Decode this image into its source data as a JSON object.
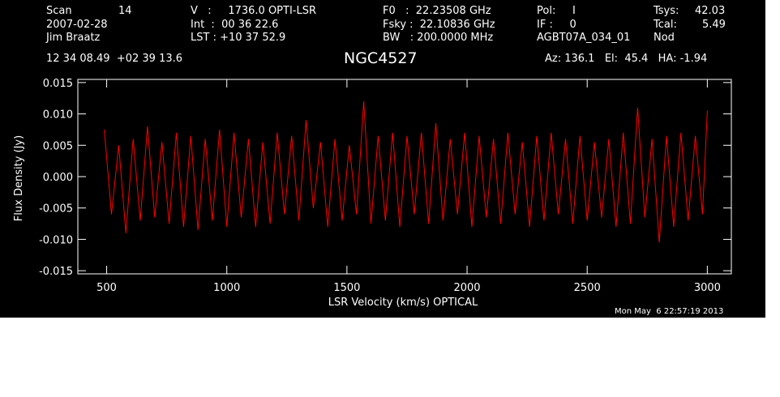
{
  "header": {
    "scan_label": "Scan",
    "scan_value": "14",
    "date": "2007-02-28",
    "observer": "Jim Braatz",
    "v_line": "V   :     1736.0 OPTI-LSR",
    "int_line": "Int  :  00 36 22.6",
    "lst_line": "LST : +10 37 52.9",
    "f0_line": "F0   :  22.23508 GHz",
    "fsky_line": "Fsky :  22.10836 GHz",
    "bw_line": "BW   : 200.0000 MHz",
    "pol_line": "Pol:     I",
    "if_line": "IF :     0",
    "project": "AGBT07A_034_01",
    "tsys_label": "Tsys:",
    "tsys_value": "42.03",
    "tcal_label": "Tcal:",
    "tcal_value": "5.49",
    "nod": "Nod",
    "coords": "12 34 08.49  +02 39 13.6",
    "source": "NGC4527",
    "az_el_ha": "Az: 136.1   El:  45.4   HA: -1.94",
    "timestamp": "Mon May  6 22:57:19 2013"
  },
  "chart_data": {
    "type": "line",
    "title": "NGC4527",
    "xlabel": "LSR Velocity (km/s) OPTICAL",
    "ylabel": "Flux Density (Jy)",
    "xlim": [
      380,
      3100
    ],
    "ylim": [
      -0.0155,
      0.0155
    ],
    "xticks": [
      500,
      1000,
      1500,
      2000,
      2500,
      3000
    ],
    "xtick_labels": [
      "500",
      "1000",
      "1500",
      "2000",
      "2500",
      "3000"
    ],
    "yticks": [
      -0.015,
      -0.01,
      -0.005,
      0,
      0.005,
      0.01,
      0.015
    ],
    "ytick_labels": [
      "-0.015",
      "-0.010",
      "-0.005",
      "0.000",
      "0.005",
      "0.010",
      "0.015"
    ],
    "grid": false,
    "line_color": "#ff0000",
    "axis_color": "#ffffff",
    "background": "#000000",
    "series": [
      {
        "x": [
          490,
          520,
          550,
          580,
          610,
          640,
          670,
          700,
          730,
          760,
          790,
          820,
          850,
          880,
          910,
          940,
          970,
          1000,
          1030,
          1060,
          1090,
          1120,
          1150,
          1180,
          1210,
          1240,
          1270,
          1300,
          1330,
          1360,
          1390,
          1420,
          1450,
          1480,
          1510,
          1540,
          1570,
          1600,
          1630,
          1660,
          1690,
          1720,
          1750,
          1780,
          1810,
          1840,
          1870,
          1900,
          1930,
          1960,
          1990,
          2020,
          2050,
          2080,
          2110,
          2140,
          2170,
          2200,
          2230,
          2260,
          2290,
          2320,
          2350,
          2380,
          2410,
          2440,
          2470,
          2500,
          2530,
          2560,
          2590,
          2620,
          2650,
          2680,
          2710,
          2740,
          2770,
          2800,
          2830,
          2860,
          2890,
          2920,
          2950,
          2980,
          3000
        ],
        "y": [
          0.0075,
          -0.006,
          0.005,
          -0.009,
          0.006,
          -0.007,
          0.008,
          -0.0065,
          0.0055,
          -0.0075,
          0.007,
          -0.008,
          0.0065,
          -0.0085,
          0.006,
          -0.007,
          0.0075,
          -0.008,
          0.007,
          -0.0065,
          0.006,
          -0.008,
          0.0055,
          -0.0075,
          0.007,
          -0.006,
          0.0065,
          -0.007,
          0.009,
          -0.005,
          0.0055,
          -0.008,
          0.006,
          -0.007,
          0.005,
          -0.006,
          0.012,
          -0.0075,
          0.0065,
          -0.007,
          0.007,
          -0.008,
          0.0065,
          -0.006,
          0.007,
          -0.0075,
          0.0085,
          -0.007,
          0.006,
          -0.006,
          0.007,
          -0.008,
          0.0065,
          -0.0065,
          0.006,
          -0.0075,
          0.007,
          -0.006,
          0.0055,
          -0.008,
          0.0065,
          -0.007,
          0.007,
          -0.006,
          0.006,
          -0.0075,
          0.0065,
          -0.007,
          0.0055,
          -0.0065,
          0.006,
          -0.008,
          0.007,
          -0.0075,
          0.011,
          -0.0065,
          0.006,
          -0.0105,
          0.0065,
          -0.008,
          0.007,
          -0.007,
          0.0065,
          -0.006,
          0.0105
        ]
      }
    ]
  }
}
